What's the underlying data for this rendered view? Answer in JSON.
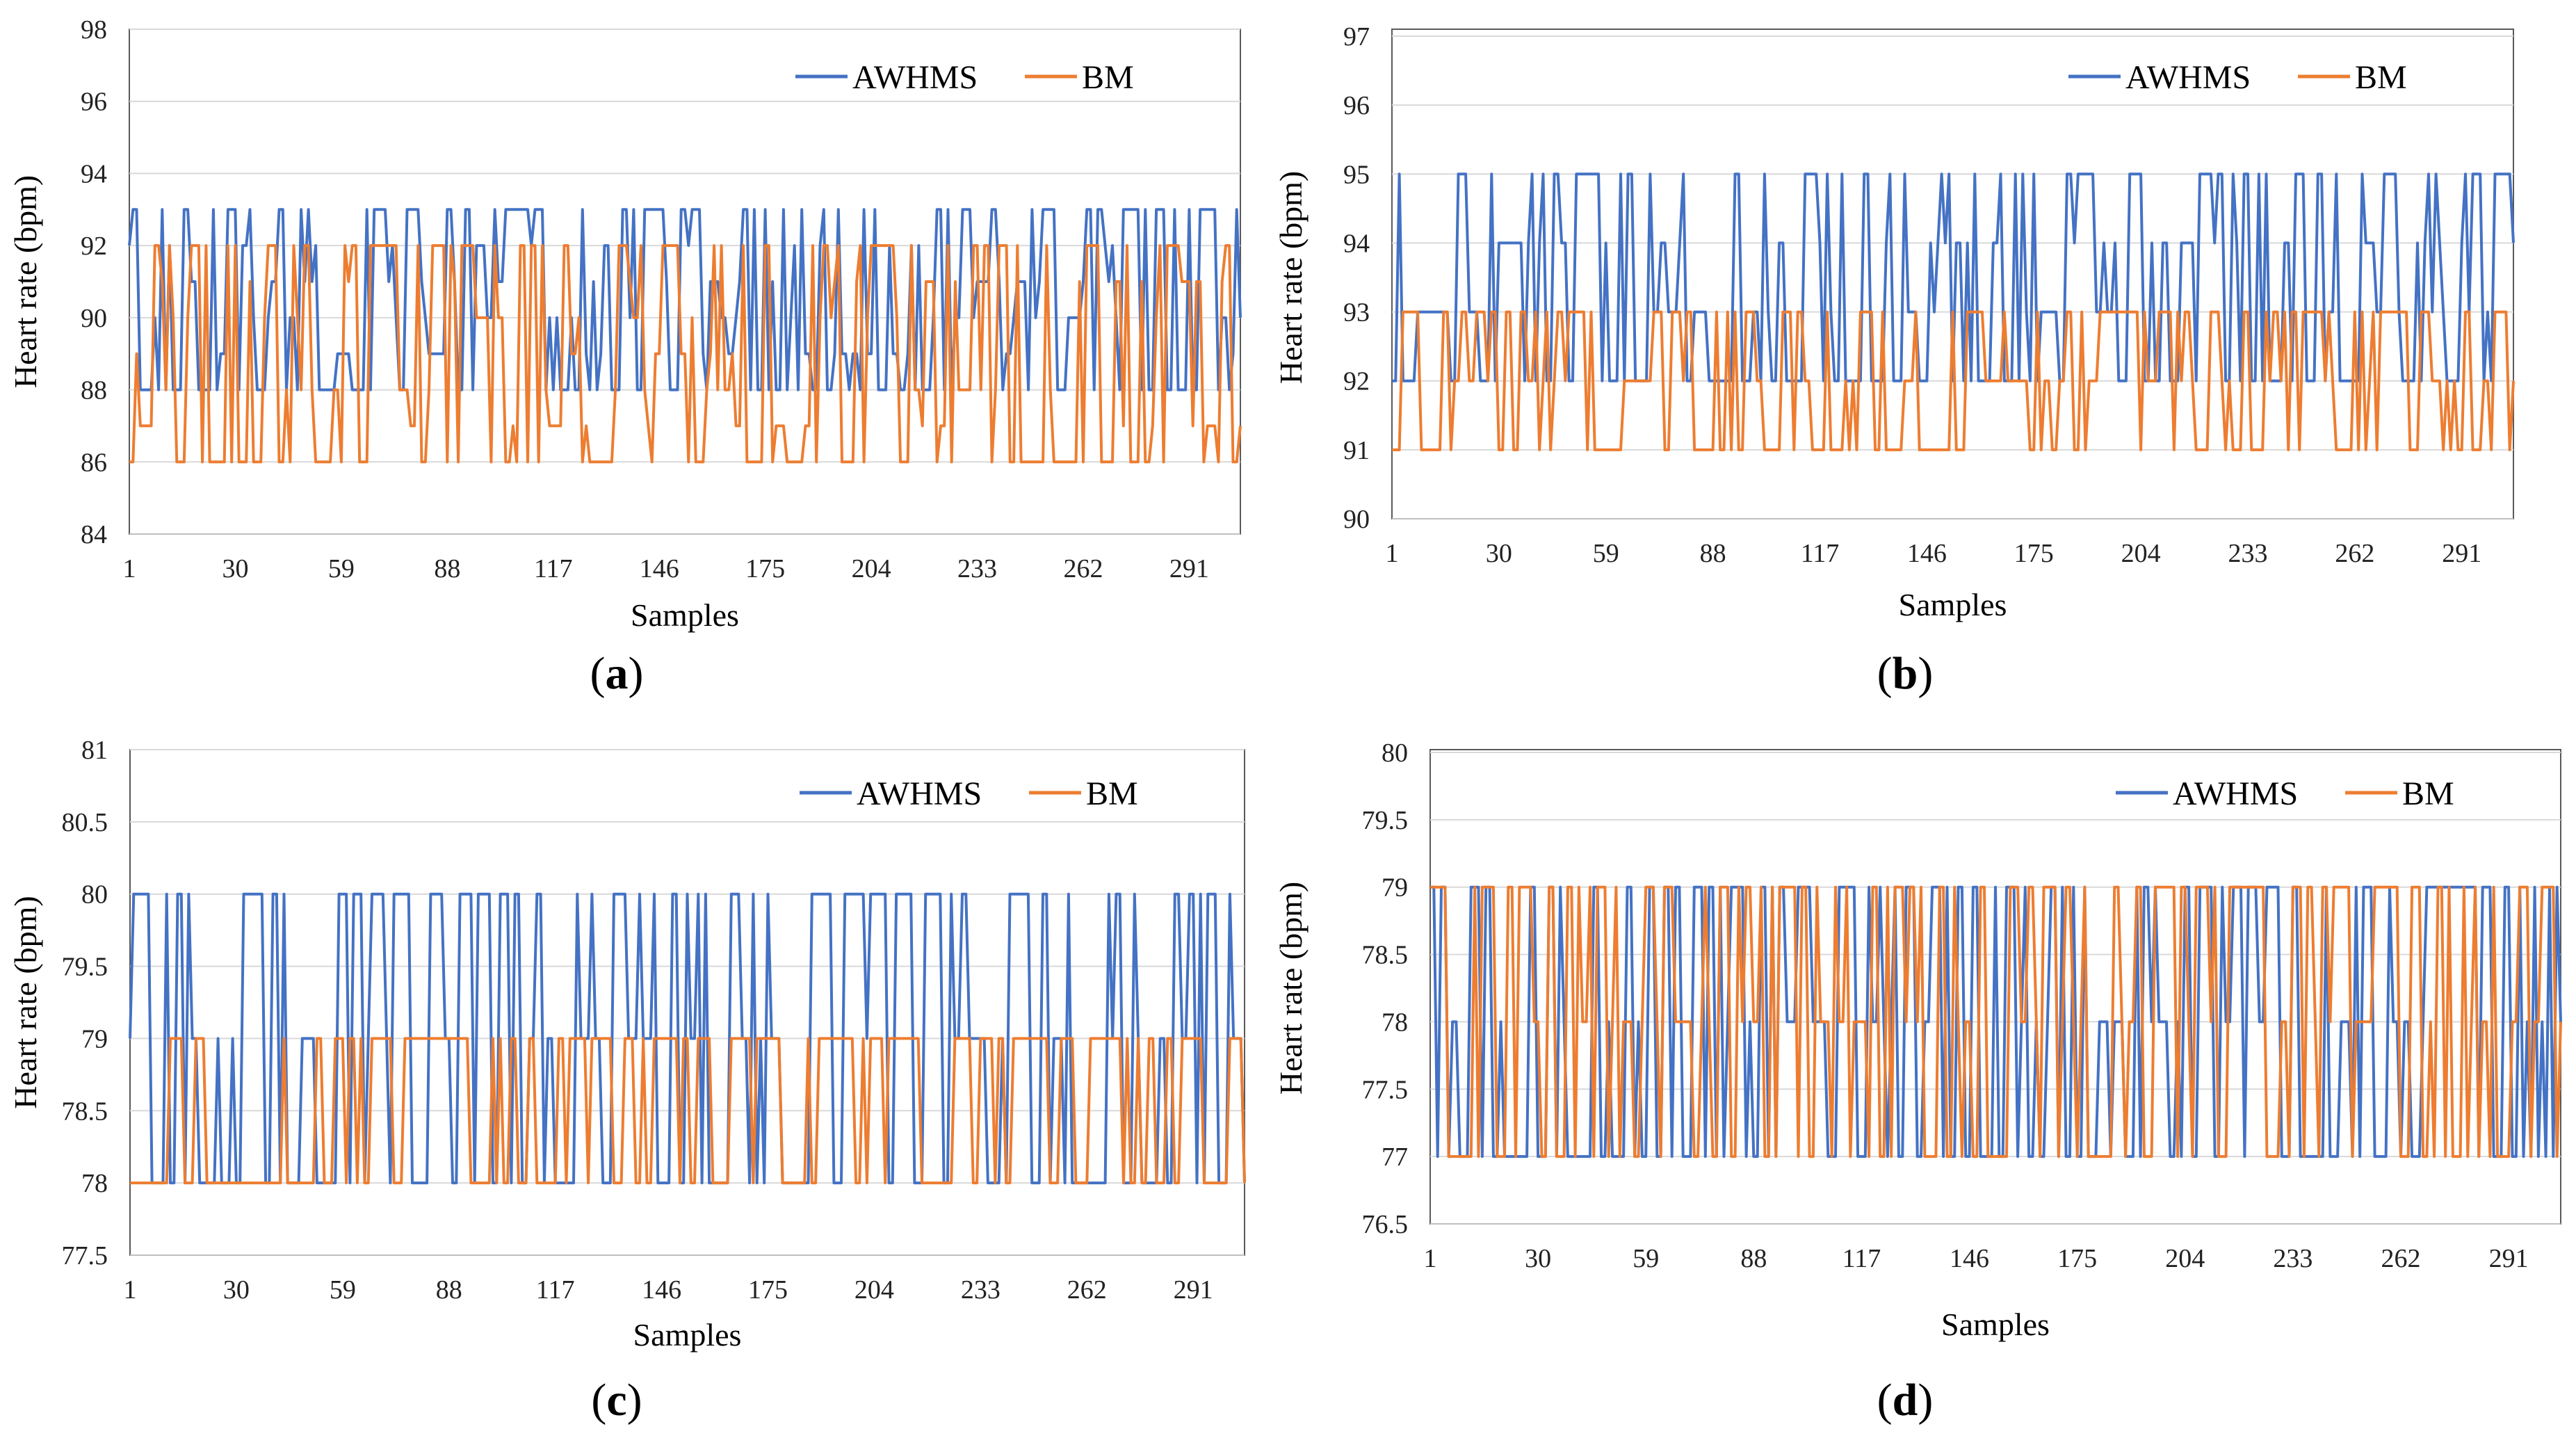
{
  "colors": {
    "AWHMS": "#4472C4",
    "BM": "#ED7D31",
    "grid": "#D9D9D9",
    "border": "#595959"
  },
  "chart_data": [
    {
      "type": "line",
      "panel": "a",
      "xlabel": "Samples",
      "ylabel": "Heart rate (bpm)",
      "ylim": [
        84,
        98
      ],
      "yticks": [
        "98",
        "96",
        "94",
        "92",
        "90",
        "88",
        "86",
        "84"
      ],
      "xlim": [
        1,
        305
      ],
      "xticks": [
        "1",
        "30",
        "59",
        "88",
        "117",
        "146",
        "175",
        "204",
        "233",
        "262",
        "291"
      ],
      "legend": [
        "AWHMS",
        "BM"
      ],
      "legend_position": "top-right",
      "grid": "horizontal",
      "series": [
        {
          "name": "AWHMS",
          "n": 305,
          "levels": [
            88,
            93
          ],
          "first_value": 92,
          "last_value": 90,
          "seed": 11
        },
        {
          "name": "BM",
          "n": 305,
          "levels": [
            86,
            92
          ],
          "first_value": 86,
          "last_value": 87,
          "seed": 23
        }
      ]
    },
    {
      "type": "line",
      "panel": "b",
      "xlabel": "Samples",
      "ylabel": "Heart rate (bpm)",
      "ylim": [
        90,
        97
      ],
      "yticks": [
        "97",
        "96",
        "95",
        "94",
        "93",
        "92",
        "91",
        "90"
      ],
      "xlim": [
        1,
        305
      ],
      "xticks": [
        "1",
        "30",
        "59",
        "88",
        "117",
        "146",
        "175",
        "204",
        "233",
        "262",
        "291"
      ],
      "legend": [
        "AWHMS",
        "BM"
      ],
      "legend_position": "top-right",
      "grid": "horizontal",
      "series": [
        {
          "name": "AWHMS",
          "n": 305,
          "levels": [
            92,
            95
          ],
          "first_value": 92,
          "last_value": 94,
          "seed": 37
        },
        {
          "name": "BM",
          "n": 305,
          "levels": [
            91,
            93
          ],
          "first_value": 91,
          "last_value": 92,
          "seed": 41
        }
      ]
    },
    {
      "type": "line",
      "panel": "c",
      "xlabel": "Samples",
      "ylabel": "Heart rate (bpm)",
      "ylim": [
        77.5,
        81
      ],
      "yticks": [
        "81",
        "80.5",
        "80",
        "79.5",
        "79",
        "78.5",
        "78",
        "77.5"
      ],
      "xlim": [
        1,
        305
      ],
      "xticks": [
        "1",
        "30",
        "59",
        "88",
        "117",
        "146",
        "175",
        "204",
        "233",
        "262",
        "291"
      ],
      "legend": [
        "AWHMS",
        "BM"
      ],
      "legend_position": "top-right",
      "grid": "horizontal",
      "series": [
        {
          "name": "AWHMS",
          "n": 305,
          "levels": [
            78,
            80
          ],
          "first_value": 79,
          "last_value": 78,
          "seed": 53
        },
        {
          "name": "BM",
          "n": 305,
          "levels": [
            78,
            79
          ],
          "first_value": 78,
          "last_value": 78,
          "seed": 67
        }
      ]
    },
    {
      "type": "line",
      "panel": "d",
      "xlabel": "Samples",
      "ylabel": "Heart rate (bpm)",
      "ylim": [
        76.5,
        80
      ],
      "yticks": [
        "80",
        "79.5",
        "79",
        "78.5",
        "78",
        "77.5",
        "77",
        "76.5"
      ],
      "xlim": [
        1,
        305
      ],
      "xticks": [
        "1",
        "30",
        "59",
        "88",
        "117",
        "146",
        "175",
        "204",
        "233",
        "262",
        "291"
      ],
      "legend": [
        "AWHMS",
        "BM"
      ],
      "legend_position": "top-right",
      "grid": "horizontal",
      "series": [
        {
          "name": "AWHMS",
          "n": 305,
          "levels": [
            77,
            79
          ],
          "first_value": 79,
          "last_value": 78,
          "seed": 71
        },
        {
          "name": "BM",
          "n": 305,
          "levels": [
            77,
            79
          ],
          "first_value": 79,
          "last_value": 78,
          "seed": 89
        }
      ]
    }
  ]
}
